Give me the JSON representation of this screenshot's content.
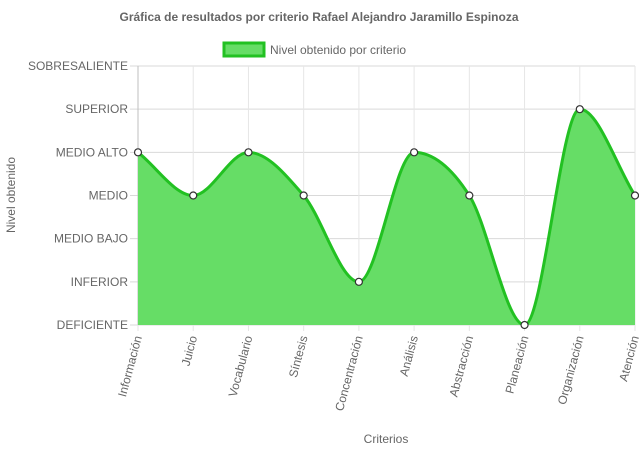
{
  "chart_data": {
    "type": "area",
    "title": "Gráfica de resultados por criterio Rafael Alejandro Jaramillo Espinoza",
    "xlabel": "Criterios",
    "ylabel": "Nivel obtenido",
    "y_levels": [
      "DEFICIENTE",
      "INFERIOR",
      "MEDIO BAJO",
      "MEDIO",
      "MEDIO ALTO",
      "SUPERIOR",
      "SOBRESALIENTE"
    ],
    "categories": [
      "Información",
      "Juicio",
      "Vocabulario",
      "Síntesis",
      "Concentración",
      "Análisis",
      "Abstracción",
      "Planeación",
      "Organización",
      "Atención"
    ],
    "series": [
      {
        "name": "Nivel obtenido por criterio",
        "values": [
          "MEDIO ALTO",
          "MEDIO",
          "MEDIO ALTO",
          "MEDIO",
          "INFERIOR",
          "MEDIO ALTO",
          "MEDIO",
          "DEFICIENTE",
          "SUPERIOR",
          "MEDIO"
        ],
        "fill": "#66dd66",
        "stroke": "#22c122"
      }
    ],
    "grid": true,
    "legend": "top-center"
  }
}
